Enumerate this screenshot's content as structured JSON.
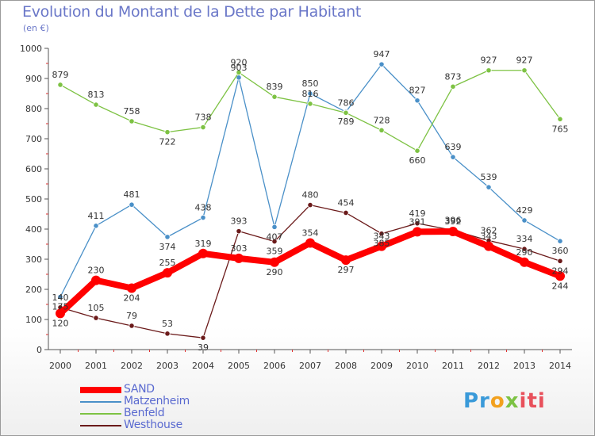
{
  "chart_data": {
    "type": "line",
    "title": "Evolution du Montant de la Dette par Habitant",
    "subtitle": "(en €)",
    "xlabel": "",
    "ylabel": "",
    "x": [
      "2000",
      "2001",
      "2002",
      "2003",
      "2004",
      "2005",
      "2006",
      "2007",
      "2008",
      "2009",
      "2010",
      "2011",
      "2012",
      "2013",
      "2014"
    ],
    "ylim": [
      0,
      1000
    ],
    "yticks": [
      "0",
      "100",
      "200",
      "300",
      "400",
      "500",
      "600",
      "700",
      "800",
      "900",
      "1000"
    ],
    "grid": false,
    "legend_position": "bottom-left",
    "series": [
      {
        "name": "SAND",
        "color": "#ff0000",
        "values": [
          120,
          230,
          204,
          255,
          319,
          303,
          290,
          354,
          297,
          343,
          391,
          392,
          343,
          290,
          244
        ]
      },
      {
        "name": "Matzenheim",
        "color": "#4a90c8",
        "values": [
          175,
          411,
          481,
          374,
          438,
          903,
          407,
          850,
          789,
          947,
          827,
          639,
          539,
          429,
          360
        ]
      },
      {
        "name": "Benfeld",
        "color": "#7dc243",
        "values": [
          879,
          813,
          758,
          722,
          738,
          920,
          839,
          816,
          786,
          728,
          660,
          873,
          927,
          927,
          765
        ]
      },
      {
        "name": "Westhouse",
        "color": "#6b1a1a",
        "values": [
          140,
          105,
          79,
          53,
          39,
          393,
          359,
          480,
          454,
          385,
          419,
          396,
          362,
          334,
          294
        ]
      }
    ]
  },
  "brand": {
    "p1": "Pr",
    "p2": "o",
    "p3": "x",
    "p4": "iti"
  }
}
